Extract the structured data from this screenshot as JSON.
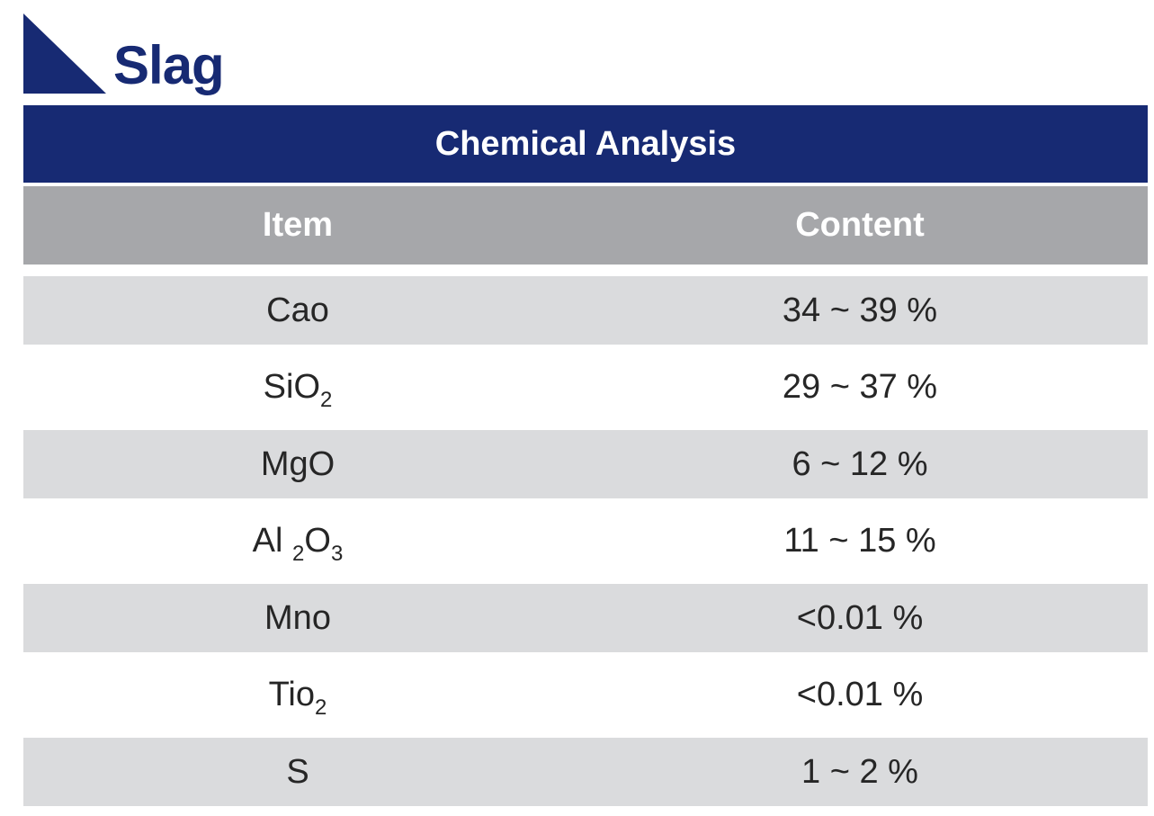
{
  "page": {
    "title": "Slag",
    "brand_color": "#172a73"
  },
  "table": {
    "title": "Chemical Analysis",
    "headers": {
      "item": "Item",
      "content": "Content"
    },
    "rows": [
      {
        "item": "Cao",
        "content": "34 ~ 39 %"
      },
      {
        "item_parts": [
          "Si",
          "O",
          "2"
        ],
        "item": "SiO2",
        "content": "29 ~ 37 %"
      },
      {
        "item": "MgO",
        "content": "6 ~ 12 %"
      },
      {
        "item_parts": [
          "Al ",
          "2",
          "O",
          "3"
        ],
        "item": "Al 2O3",
        "content": "11 ~ 15 %"
      },
      {
        "item": "Mno",
        "content": "<0.01 %"
      },
      {
        "item_parts": [
          "Tio",
          "2"
        ],
        "item": "Tio2",
        "content": "<0.01 %"
      },
      {
        "item": "S",
        "content": "1 ~ 2 %"
      }
    ],
    "header_color": "#a6a7aa",
    "shaded_row_color": "#dadbdd"
  }
}
